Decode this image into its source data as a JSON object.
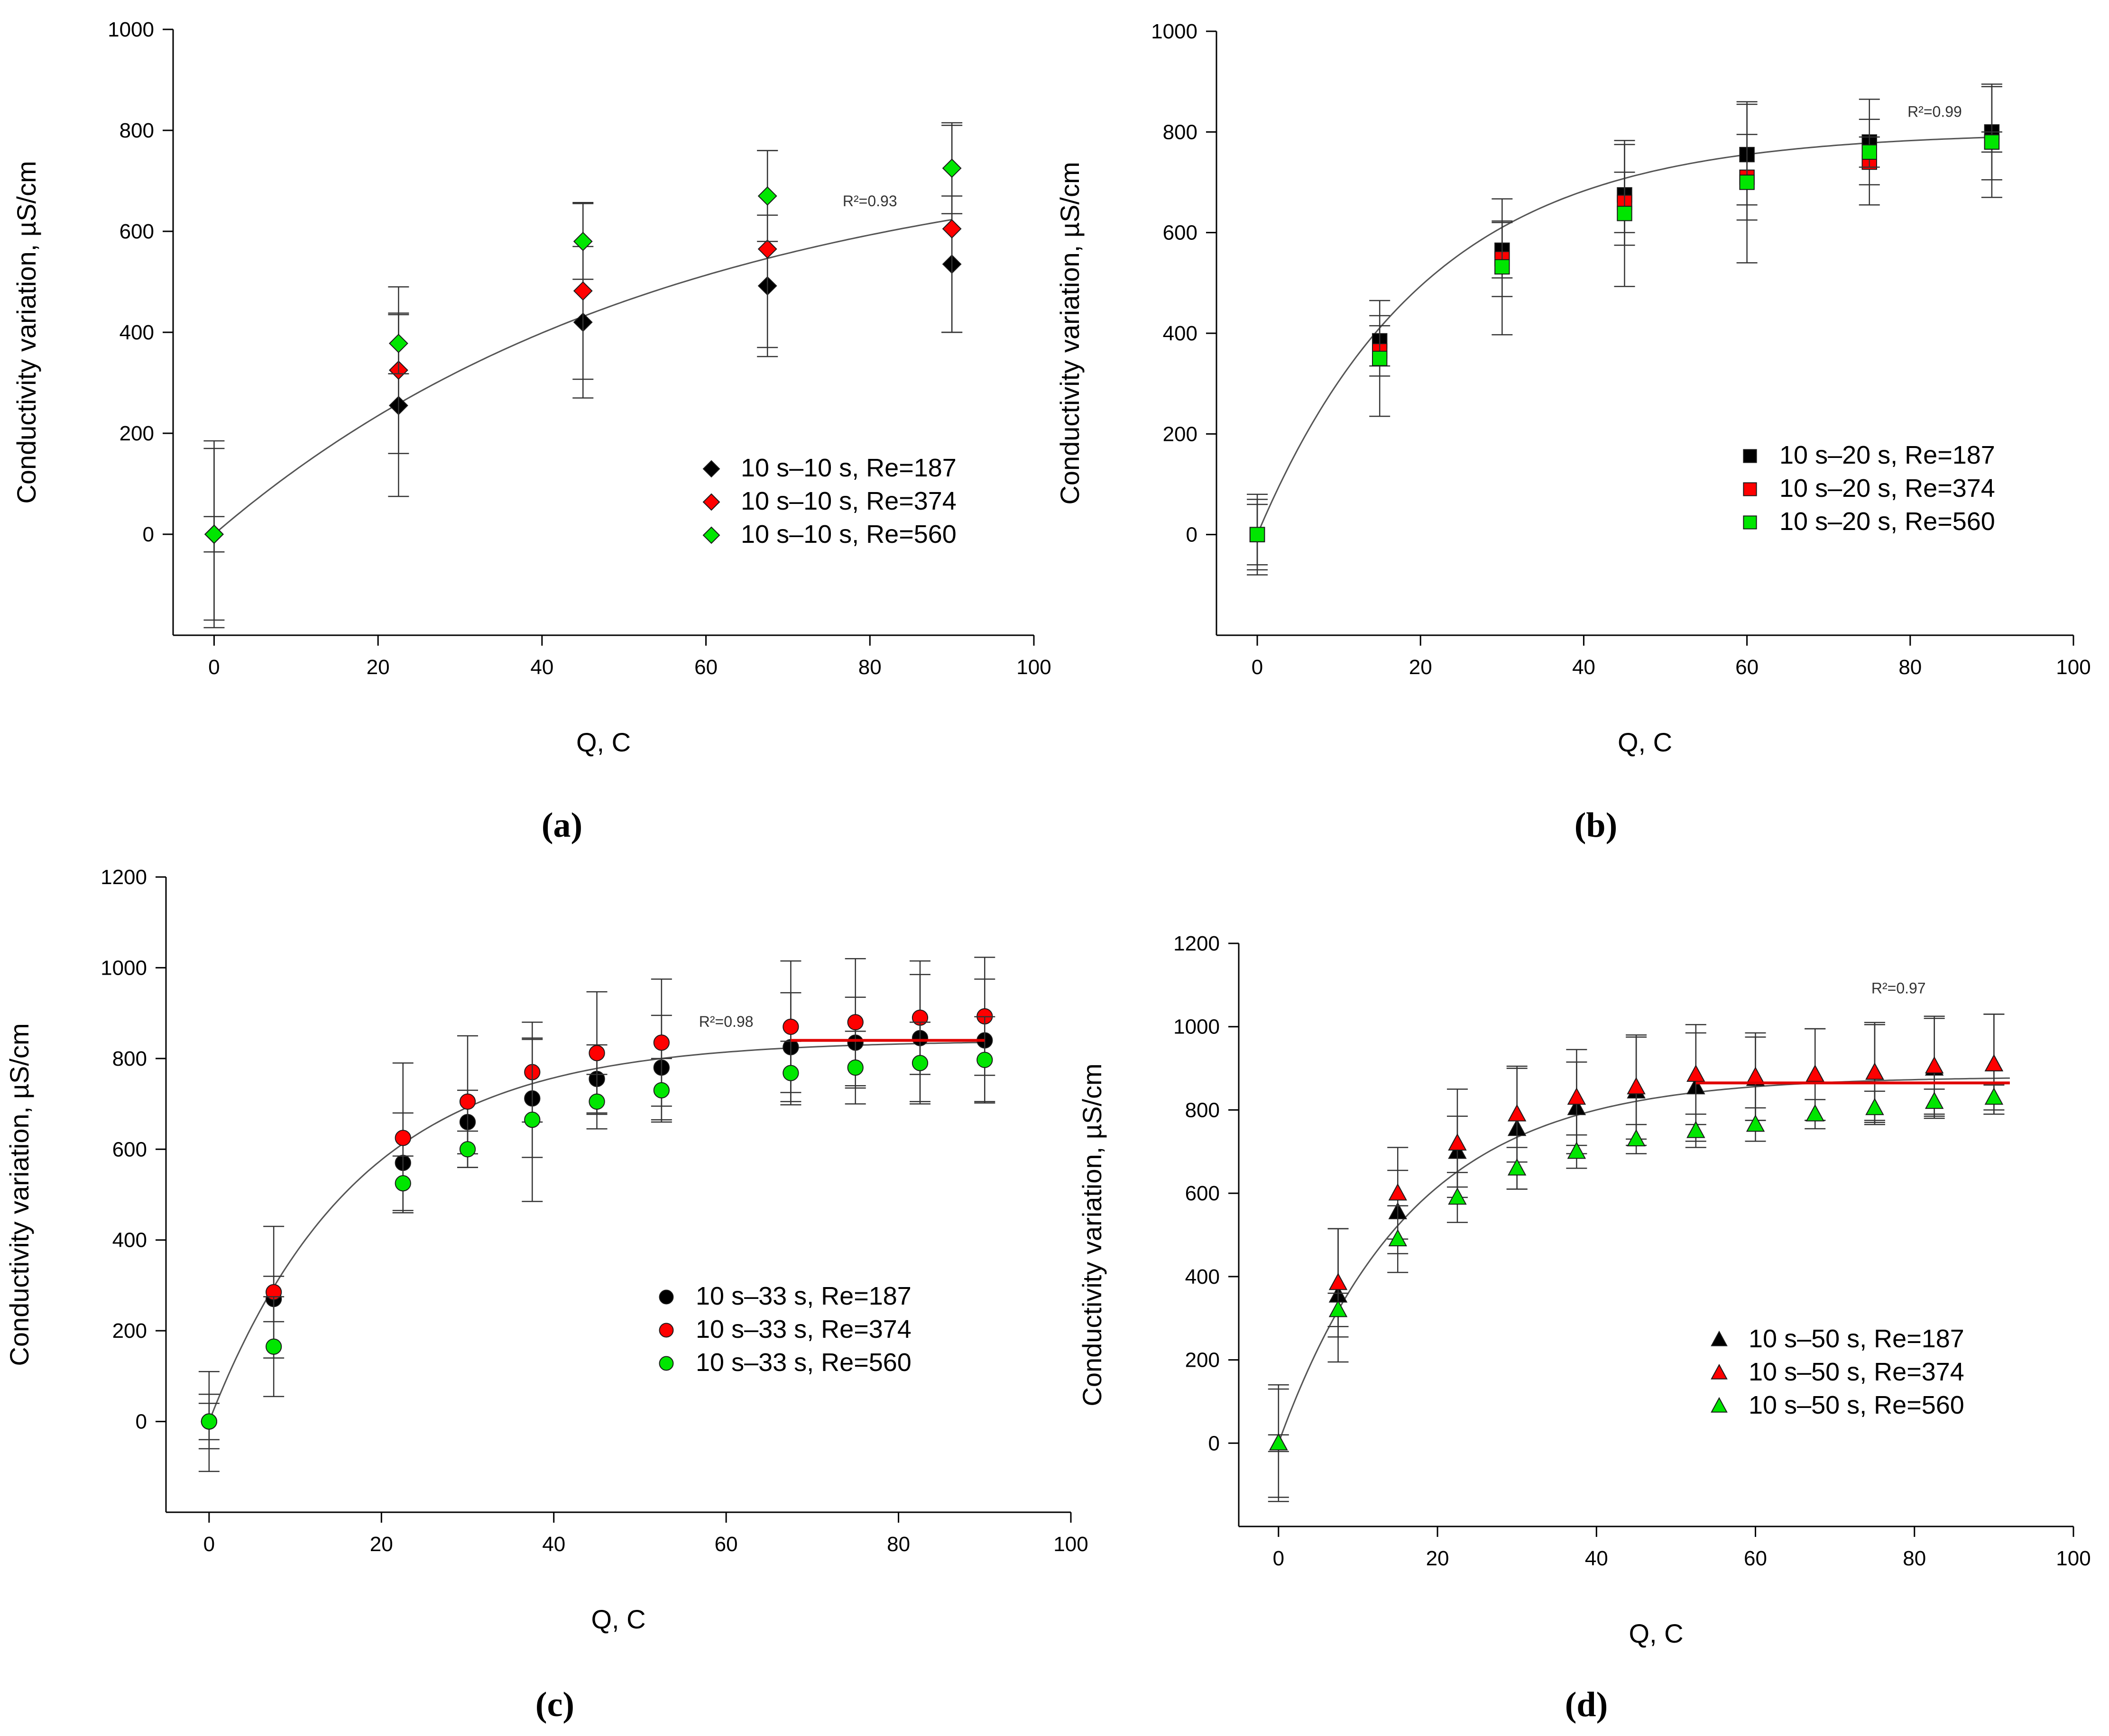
{
  "figure": {
    "colors": {
      "re187": "#000000",
      "re374": "#ff0000",
      "re560": "#00e600",
      "fit": "#555555",
      "plateau": "#e00000",
      "errorbar": "#333333"
    },
    "panels": [
      "a",
      "b",
      "c",
      "d"
    ]
  },
  "chart_data": [
    {
      "id": "a",
      "panel_label": "(a)",
      "type": "scatter",
      "marker": "diamond",
      "xlabel": "Q, C",
      "ylabel": "Conductivity variation, µS/cm",
      "xlim": [
        -5,
        100
      ],
      "ylim": [
        -200,
        1000
      ],
      "xticks": [
        0,
        20,
        40,
        60,
        80,
        100
      ],
      "xtick_labels": [
        "0",
        "20",
        "40",
        "60",
        "80",
        "100"
      ],
      "yticks": [
        0,
        200,
        400,
        600,
        800,
        1000
      ],
      "ytick_labels": [
        "0",
        "200",
        "400",
        "600",
        "800",
        "1000"
      ],
      "annotation": {
        "text": "R²=0.93",
        "x": 80,
        "y": 650
      },
      "fit": {
        "amplitude": 777,
        "rate": 0.018,
        "xmax": 90
      },
      "plateau": null,
      "legend_position": "lower-right",
      "series": [
        {
          "name": "10 s–10 s, Re=187",
          "x": [
            0,
            22.5,
            45,
            67.5,
            90
          ],
          "y": [
            0,
            255,
            420,
            492,
            535
          ],
          "err": [
            170,
            180,
            150,
            140,
            135
          ]
        },
        {
          "name": "10 s–10 s, Re=374",
          "x": [
            0,
            22.5,
            45,
            67.5,
            90
          ],
          "y": [
            0,
            325,
            482,
            565,
            605
          ],
          "err": [
            185,
            165,
            175,
            195,
            205
          ]
        },
        {
          "name": "10 s–10 s, Re=560",
          "x": [
            0,
            22.5,
            45,
            67.5,
            90
          ],
          "y": [
            0,
            378,
            580,
            670,
            725
          ],
          "err": [
            35,
            60,
            75,
            90,
            90
          ]
        }
      ]
    },
    {
      "id": "b",
      "panel_label": "(b)",
      "type": "scatter",
      "marker": "square",
      "xlabel": "Q, C",
      "ylabel": "Conductivity variation, µS/cm",
      "xlim": [
        -5,
        100
      ],
      "ylim": [
        -200,
        1000
      ],
      "xticks": [
        0,
        20,
        40,
        60,
        80,
        100
      ],
      "xtick_labels": [
        "0",
        "20",
        "40",
        "60",
        "80",
        "100"
      ],
      "yticks": [
        0,
        200,
        400,
        600,
        800,
        1000
      ],
      "ytick_labels": [
        "0",
        "200",
        "400",
        "600",
        "800",
        "1000"
      ],
      "annotation": {
        "text": "R²=0.99",
        "x": 83,
        "y": 830
      },
      "fit": {
        "amplitude": 800,
        "rate": 0.048,
        "xmax": 90
      },
      "plateau": null,
      "legend_position": "lower-right",
      "series": [
        {
          "name": "10 s–20 s, Re=187",
          "x": [
            0,
            15,
            30,
            45,
            60,
            75,
            90
          ],
          "y": [
            0,
            385,
            565,
            675,
            755,
            780,
            800
          ],
          "err": [
            80,
            50,
            55,
            100,
            100,
            85,
            95
          ]
        },
        {
          "name": "10 s–20 s, Re=374",
          "x": [
            0,
            15,
            30,
            45,
            60,
            75,
            90
          ],
          "y": [
            0,
            365,
            548,
            660,
            710,
            740,
            780
          ],
          "err": [
            60,
            50,
            75,
            60,
            85,
            85,
            20
          ]
        },
        {
          "name": "10 s–20 s, Re=560",
          "x": [
            0,
            15,
            30,
            45,
            60,
            75,
            90
          ],
          "y": [
            0,
            350,
            532,
            638,
            700,
            760,
            780
          ],
          "err": [
            70,
            115,
            135,
            145,
            160,
            30,
            110
          ]
        }
      ]
    },
    {
      "id": "c",
      "panel_label": "(c)",
      "type": "scatter",
      "marker": "circle",
      "xlabel": "Q, C",
      "ylabel": "Conductivity variation, µS/cm",
      "xlim": [
        -5,
        100
      ],
      "ylim": [
        -200,
        1200
      ],
      "xticks": [
        0,
        20,
        40,
        60,
        80,
        100
      ],
      "xtick_labels": [
        "0",
        "20",
        "40",
        "60",
        "80",
        "100"
      ],
      "yticks": [
        0,
        200,
        400,
        600,
        800,
        1000,
        1200
      ],
      "ytick_labels": [
        "0",
        "200",
        "400",
        "600",
        "800",
        "1000",
        "1200"
      ],
      "annotation": {
        "text": "R²=0.98",
        "x": 60,
        "y": 870
      },
      "fit": {
        "amplitude": 840,
        "rate": 0.058,
        "xmax": 90
      },
      "plateau": {
        "x1": 67.5,
        "x2": 90,
        "y": 840
      },
      "legend_position": "lower-right",
      "series": [
        {
          "name": "10 s–33 s, Re=187",
          "x": [
            0,
            7.5,
            22.5,
            30,
            37.5,
            45,
            52.5,
            67.5,
            75,
            82.5,
            90
          ],
          "y": [
            0,
            270,
            570,
            660,
            712,
            755,
            780,
            825,
            835,
            845,
            840
          ],
          "err": [
            40,
            50,
            110,
            70,
            130,
            75,
            115,
            120,
            100,
            140,
            135
          ]
        },
        {
          "name": "10 s–33 s, Re=374",
          "x": [
            0,
            7.5,
            22.5,
            30,
            37.5,
            45,
            52.5,
            67.5,
            75,
            82.5,
            90
          ],
          "y": [
            0,
            285,
            625,
            705,
            770,
            812,
            835,
            870,
            880,
            890,
            893
          ],
          "err": [
            110,
            145,
            165,
            145,
            110,
            135,
            140,
            145,
            140,
            125,
            130
          ]
        },
        {
          "name": "10 s–33 s, Re=560",
          "x": [
            0,
            7.5,
            22.5,
            30,
            37.5,
            45,
            52.5,
            67.5,
            75,
            82.5,
            90
          ],
          "y": [
            0,
            165,
            525,
            600,
            665,
            705,
            730,
            768,
            780,
            790,
            797
          ],
          "err": [
            60,
            110,
            60,
            40,
            180,
            60,
            70,
            70,
            80,
            90,
            95
          ]
        }
      ]
    },
    {
      "id": "d",
      "panel_label": "(d)",
      "type": "scatter",
      "marker": "triangle",
      "xlabel": "Q, C",
      "ylabel": "Conductivity variation, µS/cm",
      "xlim": [
        -5,
        100
      ],
      "ylim": [
        -200,
        1200
      ],
      "xticks": [
        0,
        20,
        40,
        60,
        80,
        100
      ],
      "xtick_labels": [
        "0",
        "20",
        "40",
        "60",
        "80",
        "100"
      ],
      "yticks": [
        0,
        200,
        400,
        600,
        800,
        1000,
        1200
      ],
      "ytick_labels": [
        "0",
        "200",
        "400",
        "600",
        "800",
        "1000",
        "1200"
      ],
      "annotation": {
        "text": "R²=0.97",
        "x": 78,
        "y": 1080
      },
      "fit": {
        "amplitude": 880,
        "rate": 0.06,
        "xmax": 92
      },
      "plateau": {
        "x1": 52.5,
        "x2": 92,
        "y": 865
      },
      "legend_position": "lower-right",
      "series": [
        {
          "name": "10 s–50 s, Re=187",
          "x": [
            0,
            7.5,
            15,
            22.5,
            30,
            37.5,
            45,
            52.5,
            60,
            67.5,
            75,
            82.5,
            90
          ],
          "y": [
            0,
            355,
            555,
            700,
            755,
            805,
            845,
            855,
            875,
            885,
            890,
            900,
            910
          ],
          "err": [
            140,
            160,
            100,
            85,
            145,
            110,
            130,
            130,
            100,
            110,
            115,
            120,
            120
          ]
        },
        {
          "name": "10 s–50 s, Re=374",
          "x": [
            0,
            7.5,
            15,
            22.5,
            30,
            37.5,
            45,
            52.5,
            60,
            67.5,
            75,
            82.5,
            90
          ],
          "y": [
            0,
            385,
            600,
            720,
            790,
            830,
            855,
            885,
            880,
            885,
            890,
            905,
            910
          ],
          "err": [
            130,
            130,
            110,
            130,
            115,
            115,
            125,
            120,
            105,
            110,
            120,
            120,
            120
          ]
        },
        {
          "name": "10 s–50 s, Re=560",
          "x": [
            0,
            7.5,
            15,
            22.5,
            30,
            37.5,
            45,
            52.5,
            60,
            67.5,
            75,
            82.5,
            90
          ],
          "y": [
            0,
            320,
            490,
            590,
            660,
            700,
            730,
            750,
            765,
            790,
            805,
            820,
            830
          ],
          "err": [
            20,
            40,
            80,
            60,
            50,
            40,
            35,
            40,
            40,
            35,
            40,
            30,
            30
          ]
        }
      ]
    }
  ]
}
